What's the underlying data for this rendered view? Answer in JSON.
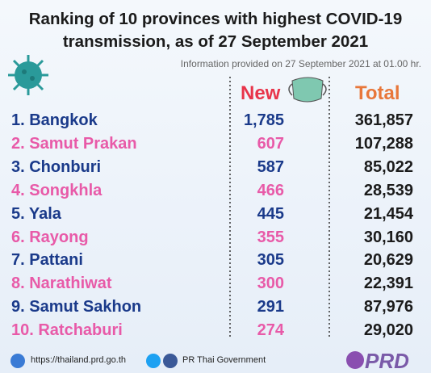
{
  "header": {
    "title": [
      "Ranking of 10 provinces with highest COVID-19",
      "transmission, as of 27 September 2021"
    ],
    "subtitle": "Information provided on 27 September 2021 at 01.00 hr."
  },
  "table": {
    "columns": [
      "New",
      "Total"
    ],
    "rows": [
      [
        "1. Bangkok",
        "1,785",
        "361,857"
      ],
      [
        "2. Samut Prakan",
        "607",
        "107,288"
      ],
      [
        "3. Chonburi",
        "587",
        "85,022"
      ],
      [
        "4. Songkhla",
        "466",
        "28,539"
      ],
      [
        "5. Yala",
        "445",
        "21,454"
      ],
      [
        "6. Rayong",
        "355",
        "30,160"
      ],
      [
        "7. Pattani",
        "305",
        "20,629"
      ],
      [
        "8. Narathiwat",
        "300",
        "22,391"
      ],
      [
        "9. Samut Sakhon",
        "291",
        "87,976"
      ],
      [
        "10. Ratchaburi",
        "274",
        "29,020"
      ]
    ]
  },
  "footer": {
    "url": "https://thailand.prd.go.th",
    "social": "PR Thai Government",
    "logo": "PRD"
  }
}
